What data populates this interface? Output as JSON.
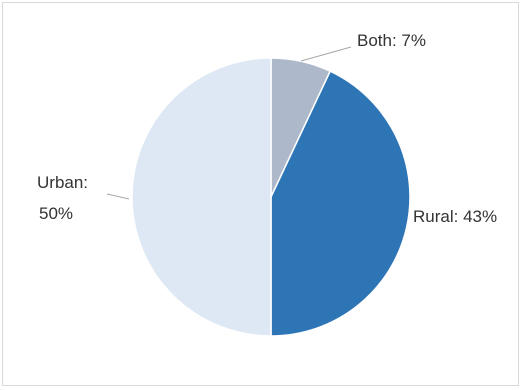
{
  "chart_data": {
    "type": "pie",
    "slices": [
      {
        "label": "Both",
        "value": 7,
        "color": "#adb9ca"
      },
      {
        "label": "Rural",
        "value": 43,
        "color": "#2e75b6"
      },
      {
        "label": "Urban",
        "value": 50,
        "color": "#dde8f4"
      }
    ],
    "data_labels": {
      "both": "Both: 7%",
      "rural": "Rural: 43%",
      "urban_line1": "Urban:",
      "urban_line2": "50%"
    },
    "start_angle": "12 o'clock",
    "direction": "clockwise",
    "legend": "none"
  }
}
